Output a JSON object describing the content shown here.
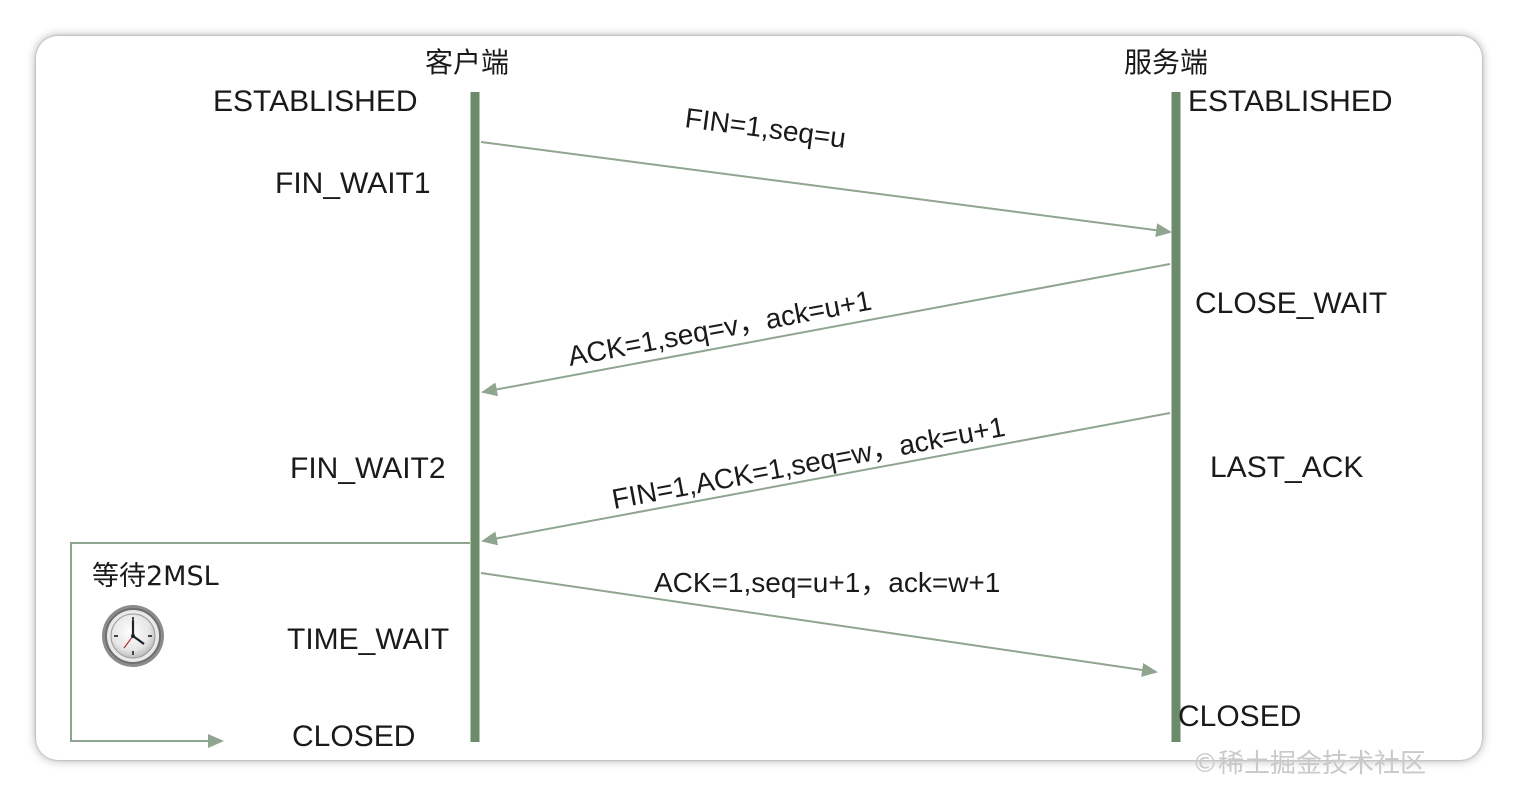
{
  "actors": {
    "client": "客户端",
    "server": "服务端"
  },
  "client_states": {
    "established": "ESTABLISHED",
    "fin_wait1": "FIN_WAIT1",
    "fin_wait2": "FIN_WAIT2",
    "time_wait": "TIME_WAIT",
    "closed": "CLOSED"
  },
  "server_states": {
    "established": "ESTABLISHED",
    "close_wait": "CLOSE_WAIT",
    "last_ack": "LAST_ACK",
    "closed": "CLOSED"
  },
  "messages": [
    {
      "label": "FIN=1,seq=u",
      "direction": "client-to-server"
    },
    {
      "label": "ACK=1,seq=v，ack=u+1",
      "direction": "server-to-client"
    },
    {
      "label": "FIN=1,ACK=1,seq=w，ack=u+1",
      "direction": "server-to-client"
    },
    {
      "label": "ACK=1,seq=u+1，ack=w+1",
      "direction": "client-to-server"
    }
  ],
  "wait_note": "等待2MSL",
  "icons": {
    "timer": "clock-icon"
  },
  "watermark": "©稀土掘金技术社区",
  "colors": {
    "lifeline": "#6b8b6b",
    "arrow": "#8fa58f",
    "text": "#1a1a1a"
  }
}
